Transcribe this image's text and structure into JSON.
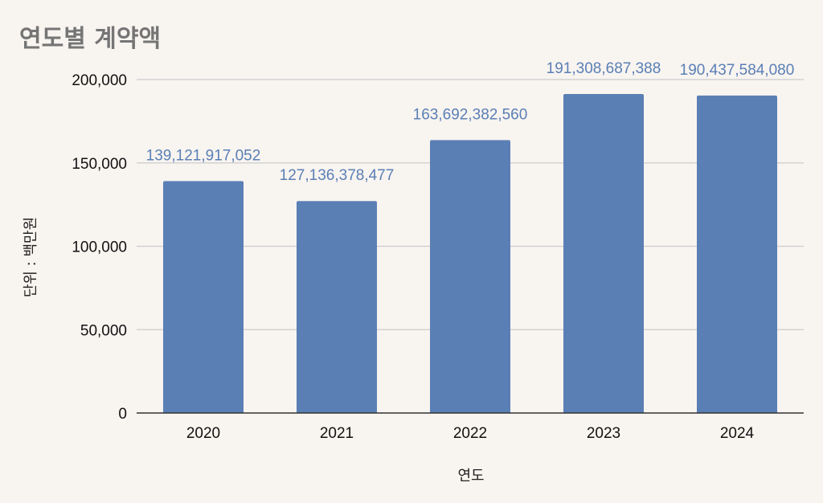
{
  "chart_data": {
    "type": "bar",
    "title": "연도별 계약액",
    "xlabel": "연도",
    "ylabel": "단위 : 백만원",
    "categories": [
      "2020",
      "2021",
      "2022",
      "2023",
      "2024"
    ],
    "values": [
      139121.917052,
      127136.378477,
      163692.38256,
      191308.687388,
      190437.58408
    ],
    "data_labels": [
      "139,121,917,052",
      "127,136,378,477",
      "163,692,382,560",
      "191,308,687,388",
      "190,437,584,080"
    ],
    "ylim": [
      0,
      200000
    ],
    "yticks": [
      0,
      50000,
      100000,
      150000,
      200000
    ],
    "ytick_labels": [
      "0",
      "50,000",
      "100,000",
      "150,000",
      "200,000"
    ],
    "grid": true,
    "colors": {
      "bar": "#5a7fb5",
      "data_label": "#5a7fb5",
      "grid": "#cccccc",
      "axis": "#333333",
      "background": "#f8f4f0",
      "title": "#757575"
    }
  }
}
